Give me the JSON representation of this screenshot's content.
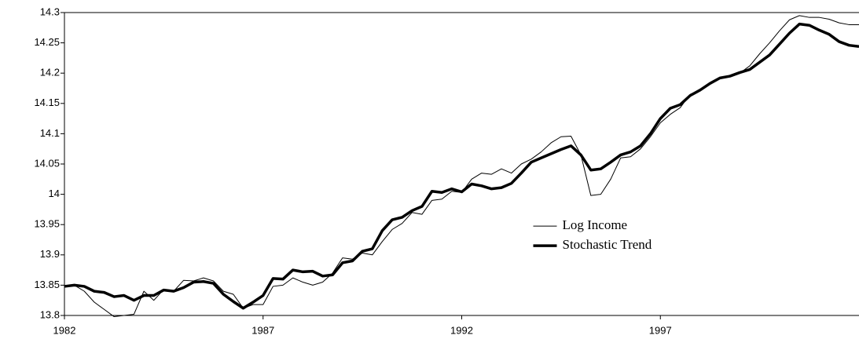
{
  "chart_data": {
    "type": "line",
    "x": [
      1982,
      1982.25,
      1982.5,
      1982.75,
      1983,
      1983.25,
      1983.5,
      1983.75,
      1984,
      1984.25,
      1984.5,
      1984.75,
      1985,
      1985.25,
      1985.5,
      1985.75,
      1986,
      1986.25,
      1986.5,
      1986.75,
      1987,
      1987.25,
      1987.5,
      1987.75,
      1988,
      1988.25,
      1988.5,
      1988.75,
      1989,
      1989.25,
      1989.5,
      1989.75,
      1990,
      1990.25,
      1990.5,
      1990.75,
      1991,
      1991.25,
      1991.5,
      1991.75,
      1992,
      1992.25,
      1992.5,
      1992.75,
      1993,
      1993.25,
      1993.5,
      1993.75,
      1994,
      1994.25,
      1994.5,
      1994.75,
      1995,
      1995.25,
      1995.5,
      1995.75,
      1996,
      1996.25,
      1996.5,
      1996.75,
      1997,
      1997.25,
      1997.5,
      1997.75,
      1998,
      1998.25,
      1998.5,
      1998.75,
      1999,
      1999.25,
      1999.5,
      1999.75,
      2000,
      2000.25,
      2000.5,
      2000.75,
      2001,
      2001.25,
      2001.5,
      2001.75,
      2002
    ],
    "series": [
      {
        "name": "Log Income",
        "color": "#000000",
        "width": 1,
        "values": [
          13.848,
          13.85,
          13.84,
          13.822,
          13.81,
          13.798,
          13.8,
          13.802,
          13.84,
          13.825,
          13.843,
          13.84,
          13.858,
          13.857,
          13.862,
          13.857,
          13.84,
          13.835,
          13.812,
          13.818,
          13.818,
          13.848,
          13.85,
          13.862,
          13.855,
          13.85,
          13.855,
          13.87,
          13.895,
          13.893,
          13.903,
          13.9,
          13.922,
          13.942,
          13.952,
          13.97,
          13.967,
          13.99,
          13.992,
          14.005,
          14.003,
          14.025,
          14.035,
          14.033,
          14.042,
          14.035,
          14.05,
          14.058,
          14.07,
          14.085,
          14.095,
          14.096,
          14.065,
          13.998,
          14.0,
          14.025,
          14.06,
          14.062,
          14.075,
          14.095,
          14.118,
          14.132,
          14.143,
          14.165,
          14.172,
          14.183,
          14.193,
          14.195,
          14.2,
          14.212,
          14.232,
          14.25,
          14.27,
          14.288,
          14.295,
          14.292,
          14.292,
          14.289,
          14.283,
          14.28,
          14.28
        ]
      },
      {
        "name": "Stochastic Trend",
        "color": "#000000",
        "width": 3.5,
        "values": [
          13.848,
          13.85,
          13.848,
          13.84,
          13.838,
          13.831,
          13.833,
          13.825,
          13.833,
          13.833,
          13.842,
          13.84,
          13.846,
          13.855,
          13.856,
          13.853,
          13.835,
          13.823,
          13.812,
          13.822,
          13.833,
          13.861,
          13.86,
          13.875,
          13.872,
          13.873,
          13.865,
          13.867,
          13.887,
          13.89,
          13.906,
          13.91,
          13.94,
          13.958,
          13.962,
          13.973,
          13.98,
          14.005,
          14.003,
          14.009,
          14.004,
          14.017,
          14.014,
          14.009,
          14.011,
          14.018,
          14.035,
          14.053,
          14.06,
          14.067,
          14.074,
          14.08,
          14.065,
          14.04,
          14.042,
          14.053,
          14.065,
          14.07,
          14.08,
          14.1,
          14.125,
          14.142,
          14.148,
          14.163,
          14.172,
          14.183,
          14.192,
          14.195,
          14.201,
          14.206,
          14.218,
          14.23,
          14.248,
          14.266,
          14.281,
          14.279,
          14.271,
          14.264,
          14.252,
          14.246,
          14.244
        ]
      }
    ],
    "xlim": [
      1982,
      2002
    ],
    "xticks": [
      1982,
      1987,
      1992,
      1997
    ],
    "ylim": [
      13.8,
      14.3
    ],
    "yticks": [
      13.8,
      13.85,
      13.9,
      13.95,
      14,
      14.05,
      14.1,
      14.15,
      14.2,
      14.25,
      14.3
    ],
    "grid": false,
    "legend": "center-right"
  }
}
